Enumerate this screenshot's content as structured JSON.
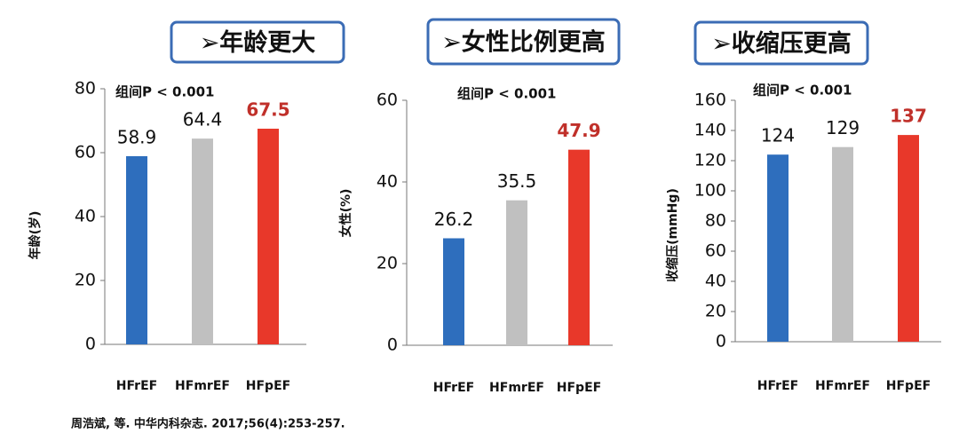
{
  "chart_data": [
    {
      "type": "bar",
      "title": "➢年龄更大",
      "annotation": "组间P < 0.001",
      "ylabel": "年龄(岁)",
      "categories": [
        "HFrEF",
        "HFmrEF",
        "HFpEF"
      ],
      "values": [
        58.9,
        64.4,
        67.5
      ],
      "colors": [
        "#2e6ebd",
        "#c0c0c0",
        "#e8382a"
      ],
      "ylim": [
        0,
        80
      ],
      "yticks": [
        0,
        20,
        40,
        60,
        80
      ]
    },
    {
      "type": "bar",
      "title": "➢女性比例更高",
      "annotation": "组间P < 0.001",
      "ylabel": "女性(%)",
      "categories": [
        "HFrEF",
        "HFmrEF",
        "HFpEF"
      ],
      "values": [
        26.2,
        35.5,
        47.9
      ],
      "colors": [
        "#2e6ebd",
        "#c0c0c0",
        "#e8382a"
      ],
      "ylim": [
        0,
        60
      ],
      "yticks": [
        0,
        20,
        40,
        60
      ]
    },
    {
      "type": "bar",
      "title": "➢收缩压更高",
      "annotation": "组间P < 0.001",
      "ylabel": "收缩压(mmHg)",
      "categories": [
        "HFrEF",
        "HFmrEF",
        "HFpEF"
      ],
      "values": [
        124,
        129,
        137
      ],
      "colors": [
        "#2e6ebd",
        "#c0c0c0",
        "#e8382a"
      ],
      "ylim": [
        0,
        160
      ],
      "yticks": [
        0,
        20,
        40,
        60,
        80,
        100,
        120,
        140,
        160
      ]
    }
  ],
  "source": "周浩斌, 等. 中华内科杂志. 2017;56(4):253-257."
}
